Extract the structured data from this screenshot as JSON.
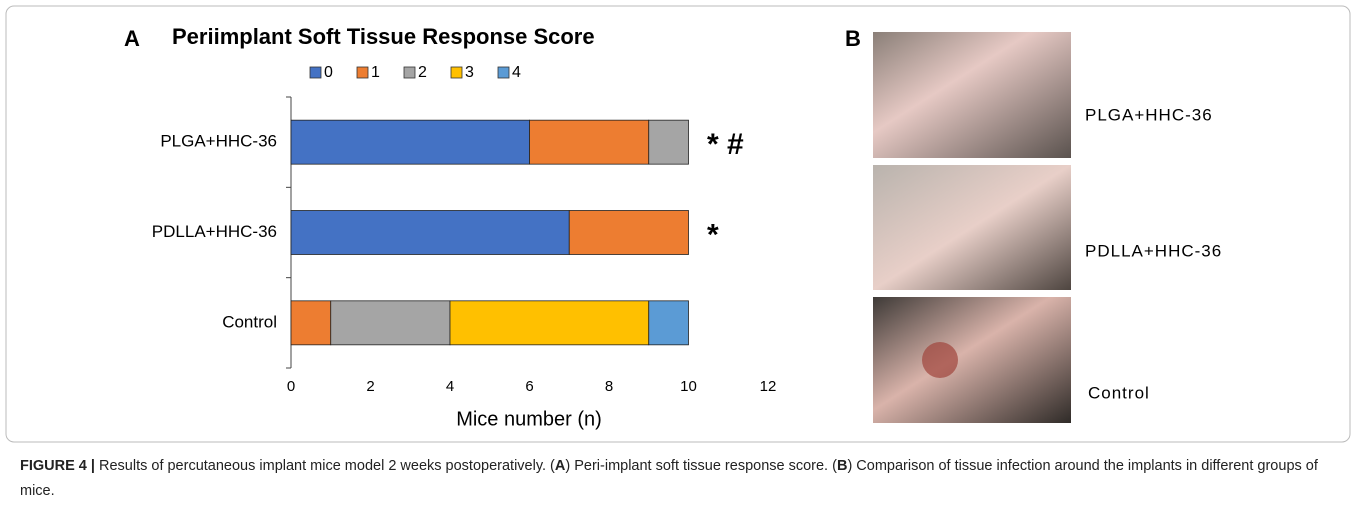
{
  "chart_data": {
    "type": "bar",
    "orientation": "horizontal",
    "stacked": true,
    "panel_label": "A",
    "title": "Periimplant Soft Tissue Response Score",
    "categories": [
      "PLGA+HHC-36",
      "PDLLA+HHC-36",
      "Control"
    ],
    "series": [
      {
        "name": "0",
        "color": "#4472c4",
        "values": [
          6,
          7,
          0
        ]
      },
      {
        "name": "1",
        "color": "#ed7d31",
        "values": [
          3,
          3,
          1
        ]
      },
      {
        "name": "2",
        "color": "#a5a5a5",
        "values": [
          1,
          0,
          3
        ]
      },
      {
        "name": "3",
        "color": "#ffc000",
        "values": [
          0,
          0,
          5
        ]
      },
      {
        "name": "4",
        "color": "#5b9bd5",
        "values": [
          0,
          0,
          1
        ]
      }
    ],
    "annotations": [
      "* #",
      "*",
      null
    ],
    "xlabel": "Mice number (n)",
    "xlim": [
      0,
      12
    ],
    "xticks": [
      0,
      2,
      4,
      6,
      8,
      10,
      12
    ],
    "legend": "top",
    "grid": false
  },
  "panel_b": {
    "label": "B",
    "photos": [
      "PLGA+HHC-36",
      "PDLLA+HHC-36",
      "Control"
    ]
  },
  "caption": {
    "label": "FIGURE 4 |",
    "text_1": " Results of percutaneous implant mice model 2 weeks postoperatively. (",
    "ref_a": "A",
    "text_2": ") Peri-implant soft tissue response score. (",
    "ref_b": "B",
    "text_3": ") Comparison of tissue infection around the implants in different groups of mice."
  }
}
